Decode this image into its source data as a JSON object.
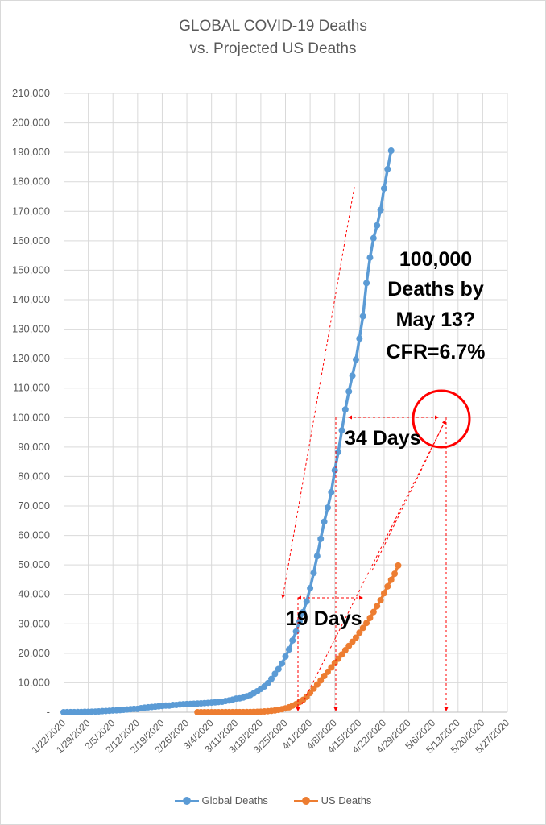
{
  "chart_data": {
    "type": "line",
    "title_line1": "GLOBAL COVID-19 Deaths",
    "title_line2": "vs. Projected US Deaths",
    "ylim": [
      0,
      210000
    ],
    "y_ticks": [
      "-",
      "10,000",
      "20,000",
      "30,000",
      "40,000",
      "50,000",
      "60,000",
      "70,000",
      "80,000",
      "90,000",
      "100,000",
      "110,000",
      "120,000",
      "130,000",
      "140,000",
      "150,000",
      "160,000",
      "170,000",
      "180,000",
      "190,000",
      "200,000",
      "210,000"
    ],
    "x_tick_labels": [
      "1/22/2020",
      "1/29/2020",
      "2/5/2020",
      "2/12/2020",
      "2/19/2020",
      "2/26/2020",
      "3/4/2020",
      "3/11/2020",
      "3/18/2020",
      "3/25/2020",
      "4/1/2020",
      "4/8/2020",
      "4/15/2020",
      "4/22/2020",
      "4/29/2020",
      "5/6/2020",
      "5/13/2020",
      "5/20/2020",
      "5/27/2020"
    ],
    "series": [
      {
        "name": "Global Deaths",
        "color": "#5b9bd5",
        "start_date": "1/22/2020",
        "values": [
          17,
          18,
          26,
          42,
          56,
          82,
          131,
          133,
          171,
          213,
          259,
          362,
          426,
          492,
          564,
          634,
          719,
          806,
          906,
          1013,
          1113,
          1118,
          1371,
          1523,
          1666,
          1770,
          1868,
          2007,
          2122,
          2247,
          2251,
          2458,
          2469,
          2629,
          2708,
          2770,
          2814,
          2872,
          2941,
          2996,
          3085,
          3160,
          3254,
          3348,
          3460,
          3558,
          3802,
          3988,
          4262,
          4615,
          4720,
          4990,
          5404,
          5819,
          6440,
          7126,
          7905,
          8733,
          9867,
          11299,
          13015,
          14627,
          16514,
          18902,
          21283,
          24347,
          27376,
          30847,
          33971,
          37581,
          42104,
          47270,
          53011,
          58820,
          64640,
          69435,
          74657,
          82115,
          88338,
          95657,
          102729,
          108834,
          114209,
          119676,
          126806,
          134389,
          145651,
          154304,
          160867,
          165224,
          170455,
          177747,
          184319,
          190569
        ]
      },
      {
        "name": "US Deaths",
        "color": "#ed7d31",
        "start_date": "2/29/2020",
        "values": [
          1,
          1,
          6,
          9,
          11,
          12,
          15,
          19,
          22,
          26,
          30,
          38,
          41,
          48,
          58,
          73,
          99,
          133,
          184,
          260,
          348,
          455,
          590,
          801,
          1026,
          1314,
          1667,
          2234,
          2748,
          3445,
          4192,
          5226,
          6537,
          7982,
          9400,
          10800,
          12300,
          13700,
          15200,
          16700,
          18150,
          19600,
          21050,
          22500,
          23900,
          25300,
          27000,
          28600,
          30300,
          32000,
          34000,
          36000,
          38000,
          40400,
          42700,
          44900,
          47000,
          49800
        ]
      }
    ],
    "annotations": {
      "callout_line1": "100,000",
      "callout_line2": "Deaths by",
      "callout_line3": "May 13?",
      "callout_line4": "CFR=6.7%",
      "days_34": "34 Days",
      "days_19": "19 Days"
    },
    "arrow_color": "#ff0000",
    "grid": true,
    "legend_position": "bottom"
  }
}
